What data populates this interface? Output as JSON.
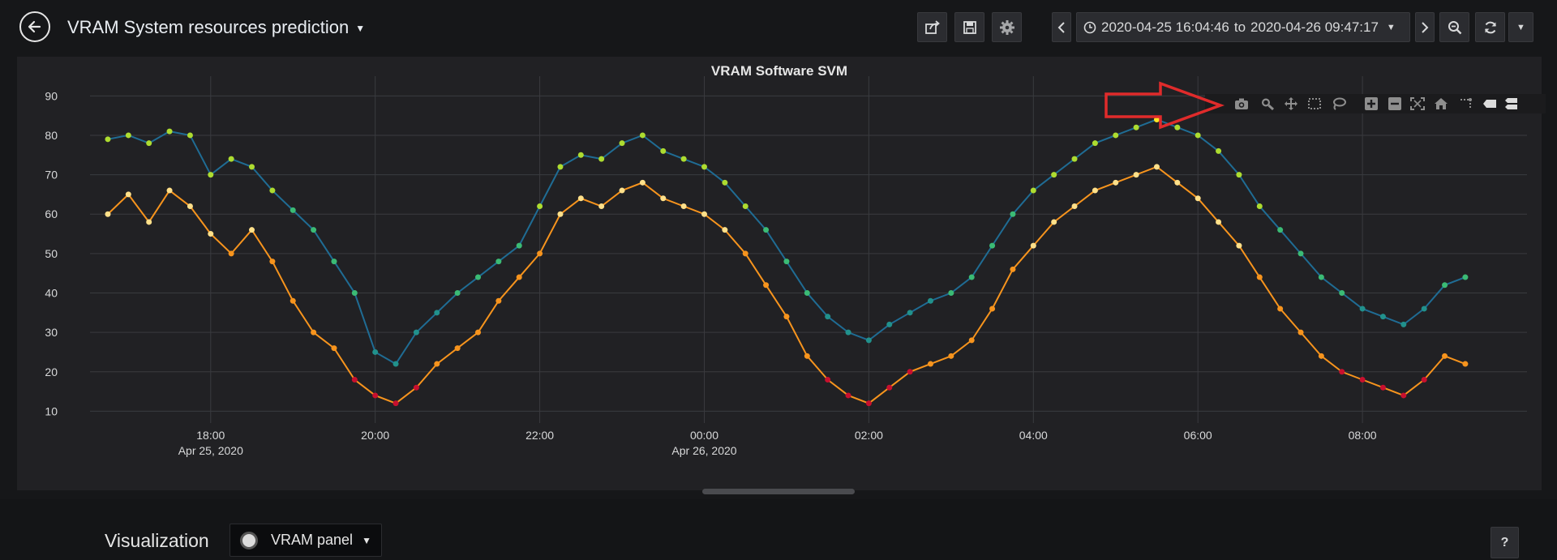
{
  "header": {
    "title": "VRAM System resources prediction",
    "time_range": {
      "from": "2020-04-25 16:04:46",
      "to_word": "to",
      "to": "2020-04-26 09:47:17"
    }
  },
  "icons": [
    "back-arrow-icon",
    "share-icon",
    "save-icon",
    "gear-icon",
    "chevron-left-icon",
    "clock-icon",
    "chevron-down-icon",
    "chevron-right-icon",
    "zoom-out-icon",
    "refresh-icon",
    "camera-icon",
    "zoom-icon",
    "pan-icon",
    "box-select-icon",
    "lasso-select-icon",
    "zoom-in-plus-icon",
    "zoom-out-minus-icon",
    "autoscale-icon",
    "reset-axes-home-icon",
    "spike-lines-icon",
    "hover-closest-icon",
    "hover-compare-icon",
    "help-icon"
  ],
  "annotation": {
    "arrow_color": "#e02b2b"
  },
  "panel": {
    "title": "VRAM Software SVM",
    "background": "#212124"
  },
  "chart_data": {
    "type": "scatter",
    "mode": "lines+markers",
    "title": "VRAM Software SVM",
    "x_range": [
      "2020-04-25 16:32",
      "2020-04-26 10:00"
    ],
    "ylim": [
      7,
      95
    ],
    "yticks": [
      10,
      20,
      30,
      40,
      50,
      60,
      70,
      80,
      90
    ],
    "xticks": [
      {
        "time": "2020-04-25 18:00",
        "label": "18:00",
        "sublabel": "Apr 25, 2020"
      },
      {
        "time": "2020-04-25 20:00",
        "label": "20:00",
        "sublabel": ""
      },
      {
        "time": "2020-04-25 22:00",
        "label": "22:00",
        "sublabel": ""
      },
      {
        "time": "2020-04-26 00:00",
        "label": "00:00",
        "sublabel": "Apr 26, 2020"
      },
      {
        "time": "2020-04-26 02:00",
        "label": "02:00",
        "sublabel": ""
      },
      {
        "time": "2020-04-26 04:00",
        "label": "04:00",
        "sublabel": ""
      },
      {
        "time": "2020-04-26 06:00",
        "label": "06:00",
        "sublabel": ""
      },
      {
        "time": "2020-04-26 08:00",
        "label": "08:00",
        "sublabel": ""
      }
    ],
    "grid": true,
    "legend": "none",
    "series": [
      {
        "line_color": "#1f6c94",
        "marker_colorscale": [
          "#1f6c94",
          "#21918c",
          "#3bbb75",
          "#addc30",
          "#fde725"
        ],
        "x": [
          "2020-04-25 16:45",
          "2020-04-25 17:00",
          "2020-04-25 17:15",
          "2020-04-25 17:30",
          "2020-04-25 17:45",
          "2020-04-25 18:00",
          "2020-04-25 18:15",
          "2020-04-25 18:30",
          "2020-04-25 18:45",
          "2020-04-25 19:00",
          "2020-04-25 19:15",
          "2020-04-25 19:30",
          "2020-04-25 19:45",
          "2020-04-25 20:00",
          "2020-04-25 20:15",
          "2020-04-25 20:30",
          "2020-04-25 20:45",
          "2020-04-25 21:00",
          "2020-04-25 21:15",
          "2020-04-25 21:30",
          "2020-04-25 21:45",
          "2020-04-25 22:00",
          "2020-04-25 22:15",
          "2020-04-25 22:30",
          "2020-04-25 22:45",
          "2020-04-25 23:00",
          "2020-04-25 23:15",
          "2020-04-25 23:30",
          "2020-04-25 23:45",
          "2020-04-26 00:00",
          "2020-04-26 00:15",
          "2020-04-26 00:30",
          "2020-04-26 00:45",
          "2020-04-26 01:00",
          "2020-04-26 01:15",
          "2020-04-26 01:30",
          "2020-04-26 01:45",
          "2020-04-26 02:00",
          "2020-04-26 02:15",
          "2020-04-26 02:30",
          "2020-04-26 02:45",
          "2020-04-26 03:00",
          "2020-04-26 03:15",
          "2020-04-26 03:30",
          "2020-04-26 03:45",
          "2020-04-26 04:00",
          "2020-04-26 04:15",
          "2020-04-26 04:30",
          "2020-04-26 04:45",
          "2020-04-26 05:00",
          "2020-04-26 05:15",
          "2020-04-26 05:30",
          "2020-04-26 05:45",
          "2020-04-26 06:00",
          "2020-04-26 06:15",
          "2020-04-26 06:30",
          "2020-04-26 06:45",
          "2020-04-26 07:00",
          "2020-04-26 07:15",
          "2020-04-26 07:30",
          "2020-04-26 07:45",
          "2020-04-26 08:00",
          "2020-04-26 08:15",
          "2020-04-26 08:30",
          "2020-04-26 08:45",
          "2020-04-26 09:00",
          "2020-04-26 09:15"
        ],
        "values": [
          79,
          80,
          78,
          81,
          80,
          70,
          74,
          72,
          66,
          61,
          56,
          48,
          40,
          25,
          22,
          30,
          35,
          40,
          44,
          48,
          52,
          62,
          72,
          75,
          74,
          78,
          80,
          76,
          74,
          72,
          68,
          62,
          56,
          48,
          40,
          34,
          30,
          28,
          32,
          35,
          38,
          40,
          44,
          52,
          60,
          66,
          70,
          74,
          78,
          80,
          82,
          84,
          82,
          80,
          76,
          70,
          62,
          56,
          50,
          44,
          40,
          36,
          34,
          32,
          36,
          42,
          44
        ]
      },
      {
        "line_color": "#f7941d",
        "marker_colorscale": [
          "#c8102e",
          "#f7941d",
          "#ffe08a",
          "#fff6c0"
        ],
        "x": [
          "2020-04-25 16:45",
          "2020-04-25 17:00",
          "2020-04-25 17:15",
          "2020-04-25 17:30",
          "2020-04-25 17:45",
          "2020-04-25 18:00",
          "2020-04-25 18:15",
          "2020-04-25 18:30",
          "2020-04-25 18:45",
          "2020-04-25 19:00",
          "2020-04-25 19:15",
          "2020-04-25 19:30",
          "2020-04-25 19:45",
          "2020-04-25 20:00",
          "2020-04-25 20:15",
          "2020-04-25 20:30",
          "2020-04-25 20:45",
          "2020-04-25 21:00",
          "2020-04-25 21:15",
          "2020-04-25 21:30",
          "2020-04-25 21:45",
          "2020-04-25 22:00",
          "2020-04-25 22:15",
          "2020-04-25 22:30",
          "2020-04-25 22:45",
          "2020-04-25 23:00",
          "2020-04-25 23:15",
          "2020-04-25 23:30",
          "2020-04-25 23:45",
          "2020-04-26 00:00",
          "2020-04-26 00:15",
          "2020-04-26 00:30",
          "2020-04-26 00:45",
          "2020-04-26 01:00",
          "2020-04-26 01:15",
          "2020-04-26 01:30",
          "2020-04-26 01:45",
          "2020-04-26 02:00",
          "2020-04-26 02:15",
          "2020-04-26 02:30",
          "2020-04-26 02:45",
          "2020-04-26 03:00",
          "2020-04-26 03:15",
          "2020-04-26 03:30",
          "2020-04-26 03:45",
          "2020-04-26 04:00",
          "2020-04-26 04:15",
          "2020-04-26 04:30",
          "2020-04-26 04:45",
          "2020-04-26 05:00",
          "2020-04-26 05:15",
          "2020-04-26 05:30",
          "2020-04-26 05:45",
          "2020-04-26 06:00",
          "2020-04-26 06:15",
          "2020-04-26 06:30",
          "2020-04-26 06:45",
          "2020-04-26 07:00",
          "2020-04-26 07:15",
          "2020-04-26 07:30",
          "2020-04-26 07:45",
          "2020-04-26 08:00",
          "2020-04-26 08:15",
          "2020-04-26 08:30",
          "2020-04-26 08:45",
          "2020-04-26 09:00",
          "2020-04-26 09:15"
        ],
        "values": [
          60,
          65,
          58,
          66,
          62,
          55,
          50,
          56,
          48,
          38,
          30,
          26,
          18,
          14,
          12,
          16,
          22,
          26,
          30,
          38,
          44,
          50,
          60,
          64,
          62,
          66,
          68,
          64,
          62,
          60,
          56,
          50,
          42,
          34,
          24,
          18,
          14,
          12,
          16,
          20,
          22,
          24,
          28,
          36,
          46,
          52,
          58,
          62,
          66,
          68,
          70,
          72,
          68,
          64,
          58,
          52,
          44,
          36,
          30,
          24,
          20,
          18,
          16,
          14,
          18,
          24,
          22
        ]
      }
    ]
  },
  "bottom": {
    "viz_label": "Visualization",
    "viz_select_label": "VRAM panel",
    "help_label": "?"
  }
}
